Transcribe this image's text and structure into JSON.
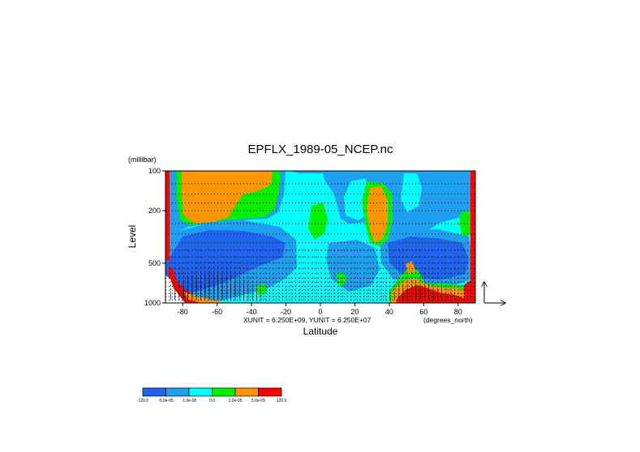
{
  "chart_data": {
    "type": "heatmap",
    "title": "EPFLX_1989-05_NCEP.nc",
    "xlabel": "Latitude",
    "ylabel": "Level",
    "y_unit": "(millibar)",
    "x_unit": "(degrees_north)",
    "vector_units": "XUNIT = 6.250E+09, YUNIT = 6.250E+07",
    "xlim": [
      -90,
      90
    ],
    "ylim": [
      1000,
      100
    ],
    "y_scale": "log",
    "grid": "dotted horizontal",
    "x_ticks": [
      -80,
      -60,
      -40,
      -20,
      0,
      20,
      40,
      60,
      80
    ],
    "x_tick_labels": [
      "-80",
      "-60",
      "-40",
      "-20",
      "0",
      "20",
      "40",
      "60",
      "80"
    ],
    "y_ticks": [
      100,
      200,
      500,
      1000
    ],
    "y_tick_labels": [
      "100",
      "200",
      "500",
      "1000"
    ],
    "grid_levels": [
      100,
      125,
      150,
      175,
      200,
      250,
      300,
      350,
      400,
      450,
      500,
      550,
      600,
      650,
      700,
      750,
      800,
      850,
      900,
      950
    ],
    "colorbar": {
      "colors": [
        "#1e64f0",
        "#1ea0f0",
        "#00ffff",
        "#00f000",
        "#ff9600",
        "#ff0000"
      ],
      "tick_labels": [
        "-120.0",
        "-5.0e-05",
        "-1.0e-05",
        "0.0",
        "1.0e-05",
        "5.0e-05",
        "120.0"
      ]
    }
  }
}
